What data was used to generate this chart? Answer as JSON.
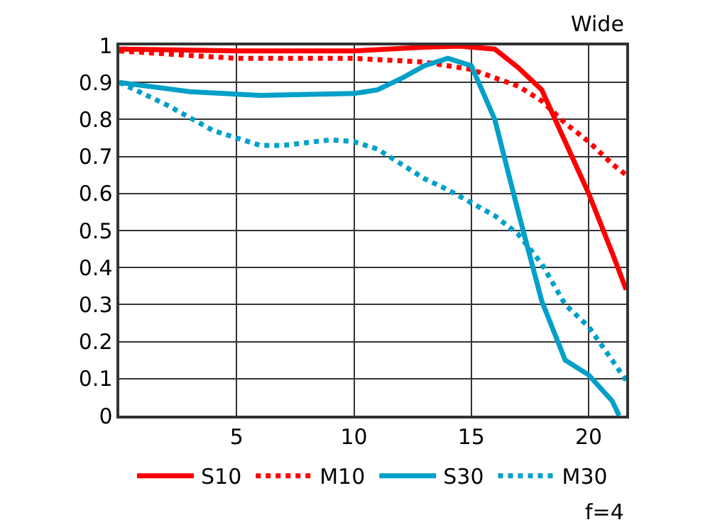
{
  "chart_data": {
    "type": "line",
    "annotations": [
      "Wide",
      "f=4"
    ],
    "xlim": [
      0,
      21.6
    ],
    "xticks": [
      5,
      10,
      15,
      20
    ],
    "ylim": [
      0,
      1
    ],
    "yticks": [
      0,
      0.1,
      0.2,
      0.3,
      0.4,
      0.5,
      0.6,
      0.7,
      0.8,
      0.9,
      1
    ],
    "grid": true,
    "legend": "bottom",
    "marker": "none",
    "series": [
      {
        "name": "S10",
        "color": "#ff0000",
        "line_style": "solid",
        "x": [
          0,
          5,
          10,
          13,
          14.5,
          16,
          17,
          18,
          19,
          20,
          21,
          21.6
        ],
        "values": [
          0.99,
          0.985,
          0.985,
          0.995,
          0.998,
          0.99,
          0.94,
          0.88,
          0.74,
          0.6,
          0.44,
          0.34
        ]
      },
      {
        "name": "M10",
        "color": "#ff0000",
        "line_style": "dotted",
        "x": [
          0,
          5,
          10,
          13,
          15,
          17,
          18,
          19,
          20,
          21,
          21.6
        ],
        "values": [
          0.985,
          0.965,
          0.965,
          0.955,
          0.935,
          0.89,
          0.85,
          0.79,
          0.74,
          0.68,
          0.65
        ]
      },
      {
        "name": "S30",
        "color": "#00a0c8",
        "line_style": "solid",
        "x": [
          0,
          3,
          6,
          10,
          11,
          12,
          13,
          14,
          15,
          16,
          17,
          18,
          19,
          20,
          21,
          21.3
        ],
        "values": [
          0.9,
          0.875,
          0.865,
          0.87,
          0.88,
          0.91,
          0.945,
          0.965,
          0.945,
          0.8,
          0.55,
          0.31,
          0.15,
          0.11,
          0.04,
          0.0
        ]
      },
      {
        "name": "M30",
        "color": "#00a0c8",
        "line_style": "dotted",
        "x": [
          0,
          2,
          4,
          5,
          6,
          7,
          9,
          10,
          11,
          12,
          13,
          14,
          15,
          16,
          17,
          18,
          19,
          20,
          21,
          21.6
        ],
        "values": [
          0.9,
          0.84,
          0.77,
          0.75,
          0.73,
          0.73,
          0.745,
          0.74,
          0.72,
          0.68,
          0.64,
          0.61,
          0.575,
          0.54,
          0.49,
          0.41,
          0.3,
          0.24,
          0.15,
          0.095
        ]
      }
    ]
  }
}
